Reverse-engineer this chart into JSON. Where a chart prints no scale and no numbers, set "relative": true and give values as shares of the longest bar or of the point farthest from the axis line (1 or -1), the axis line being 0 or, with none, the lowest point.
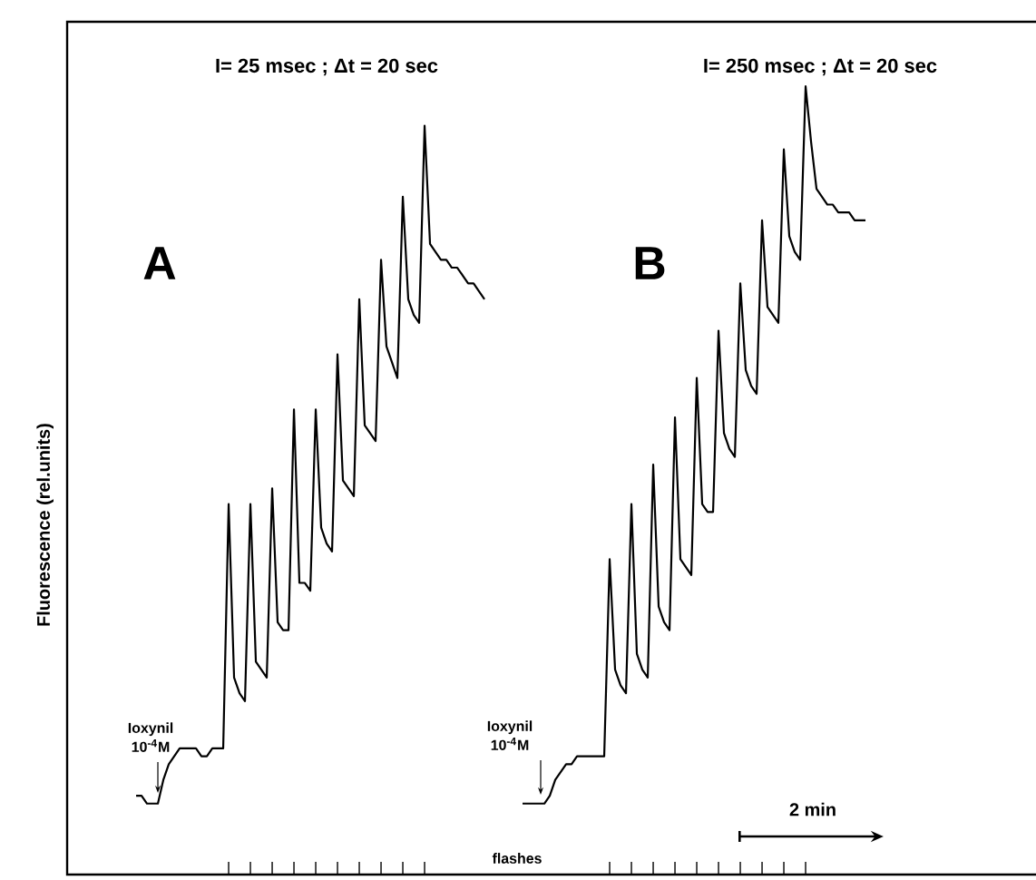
{
  "chart_data": {
    "type": "line",
    "relative": true,
    "ylabel": "Fluorescence (rel.units)",
    "categories": [
      null,
      null,
      null,
      null,
      null,
      null,
      null,
      null,
      null,
      null,
      null,
      null,
      null,
      null,
      null,
      null,
      null,
      null,
      null,
      null,
      null,
      null,
      null,
      null,
      null,
      null,
      null,
      null,
      null,
      null,
      null,
      null,
      null,
      null,
      null,
      null,
      null,
      null,
      null,
      null,
      null,
      null,
      null,
      null,
      null,
      null,
      null,
      null,
      null,
      null,
      null,
      null,
      null,
      null,
      null,
      null,
      null,
      null,
      null,
      null,
      null,
      null,
      null,
      null,
      null,
      null,
      null,
      null,
      null,
      null,
      null,
      null,
      null,
      null,
      null,
      null,
      null,
      null,
      null,
      null,
      null,
      null,
      null,
      null,
      null,
      null,
      null,
      null,
      null,
      null,
      null,
      null,
      null,
      null,
      null,
      null,
      null,
      null,
      null,
      null,
      null,
      null,
      null,
      null,
      null,
      null,
      null,
      null,
      null,
      null,
      null,
      null,
      null,
      null,
      null,
      null,
      null,
      null,
      null,
      null,
      null,
      null,
      null,
      null,
      null,
      null,
      null,
      null,
      null,
      null,
      null,
      null,
      null,
      null,
      null
    ],
    "series": [
      {
        "color": "#000000",
        "values": [
          0.1,
          0.1,
          0.09,
          0.09,
          0.09,
          0.12,
          0.14,
          0.15,
          0.16,
          0.16,
          0.16,
          0.16,
          0.15,
          0.15,
          0.16,
          0.16,
          0.16,
          0.47,
          0.25,
          0.23,
          0.22,
          0.47,
          0.27,
          0.26,
          0.25,
          0.49,
          0.32,
          0.31,
          0.31,
          0.59,
          0.37,
          0.37,
          0.36,
          0.59,
          0.44,
          0.42,
          0.41,
          0.66,
          0.5,
          0.49,
          0.48,
          0.73,
          0.57,
          0.56,
          0.55,
          0.78,
          0.67,
          0.65,
          0.63,
          0.86,
          0.73,
          0.71,
          0.7,
          0.95,
          0.8,
          0.79,
          0.78,
          0.78,
          0.77,
          0.77,
          0.76,
          0.75,
          0.75,
          0.74,
          0.73,
          null,
          null,
          null,
          null,
          null,
          null,
          null,
          null,
          null,
          null,
          null,
          null,
          null,
          null,
          null,
          null,
          null,
          null,
          null,
          null,
          null,
          null,
          null,
          null,
          null,
          null,
          null,
          null,
          null,
          null,
          null,
          null,
          null,
          null,
          null,
          null,
          null,
          null,
          null,
          null,
          null,
          null,
          null,
          null,
          null,
          null,
          null,
          null,
          null,
          null,
          null,
          null,
          null,
          null,
          null,
          null,
          null,
          null,
          null,
          null,
          null,
          null,
          null,
          null,
          null,
          null,
          null,
          null,
          null,
          null
        ]
      },
      {
        "color": "#000000",
        "values": [
          null,
          null,
          null,
          null,
          null,
          null,
          null,
          null,
          null,
          null,
          null,
          null,
          null,
          null,
          null,
          null,
          null,
          null,
          null,
          null,
          null,
          null,
          null,
          null,
          null,
          null,
          null,
          null,
          null,
          null,
          null,
          null,
          null,
          null,
          null,
          null,
          null,
          null,
          null,
          null,
          null,
          null,
          null,
          null,
          null,
          null,
          null,
          null,
          null,
          null,
          null,
          null,
          null,
          null,
          null,
          null,
          null,
          null,
          null,
          null,
          null,
          null,
          null,
          null,
          null,
          null,
          null,
          null,
          null,
          null,
          null,
          0.09,
          0.09,
          0.09,
          0.09,
          0.09,
          0.1,
          0.12,
          0.13,
          0.14,
          0.14,
          0.15,
          0.15,
          0.15,
          0.15,
          0.15,
          0.15,
          0.4,
          0.26,
          0.24,
          0.23,
          0.47,
          0.28,
          0.26,
          0.25,
          0.52,
          0.34,
          0.32,
          0.31,
          0.58,
          0.4,
          0.39,
          0.38,
          0.63,
          0.47,
          0.46,
          0.46,
          0.69,
          0.56,
          0.54,
          0.53,
          0.75,
          0.64,
          0.62,
          0.61,
          0.83,
          0.72,
          0.71,
          0.7,
          0.92,
          0.81,
          0.79,
          0.78,
          1.0,
          0.93,
          0.87,
          0.86,
          0.85,
          0.85,
          0.84,
          0.84,
          0.84,
          0.83,
          0.83,
          0.83
        ]
      }
    ],
    "annotations": [
      "I= 25 msec ; Δt = 20 sec",
      "I= 250 msec ; Δt = 20 sec",
      "A",
      "B",
      "Ioxynil 10$^{-4}$M",
      "Ioxynil 10$^{-4}$M",
      "2 min",
      "flashes"
    ]
  }
}
